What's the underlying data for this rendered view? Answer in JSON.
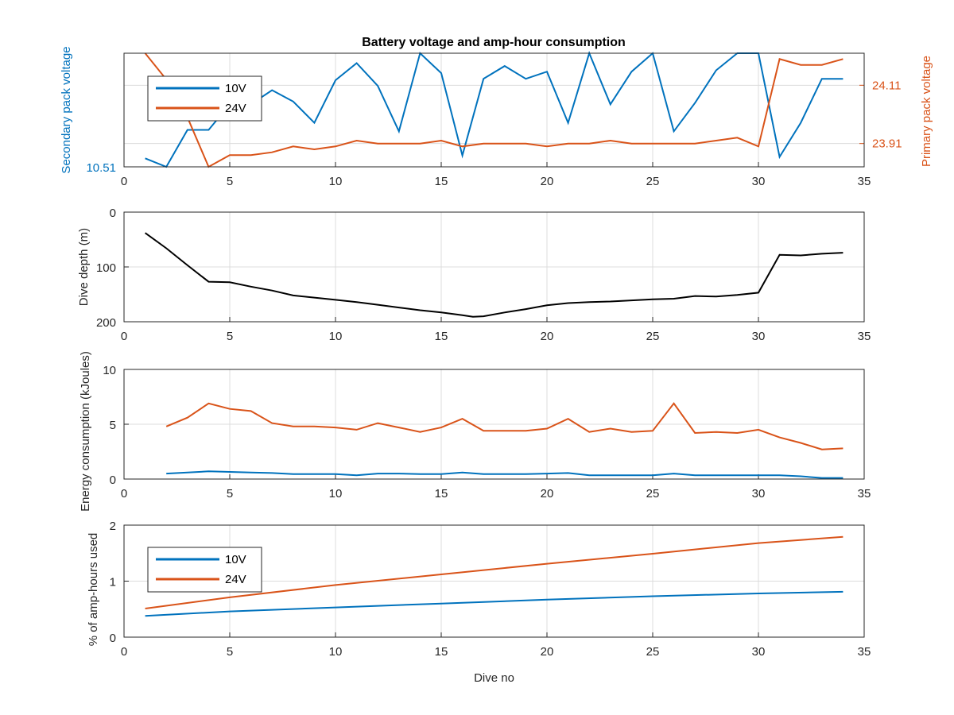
{
  "title": "Battery voltage and amp-hour consumption",
  "chart_data": [
    {
      "type": "line",
      "title": "Battery voltage and amp-hour consumption",
      "xlabel": "",
      "ylabel_left": "Secondary pack voltage",
      "ylabel_right": "Primary pack voltage",
      "xlim": [
        0,
        35
      ],
      "xticks": [
        "0",
        "5",
        "10",
        "15",
        "20",
        "25",
        "30",
        "35"
      ],
      "ylim_left": [
        10.51,
        10.59
      ],
      "yticks_left": [
        "10.51"
      ],
      "ylim_right": [
        23.83,
        24.22
      ],
      "yticks_right": [
        "23.91",
        "24.11"
      ],
      "grid": true,
      "legend_position": "upper-left",
      "series": [
        {
          "name": "10V",
          "axis": "left",
          "color": "#0072BD",
          "x": [
            1,
            2,
            3,
            4,
            5,
            6,
            7,
            8,
            9,
            10,
            11,
            12,
            13,
            14,
            15,
            16,
            17,
            18,
            19,
            20,
            21,
            22,
            23,
            24,
            25,
            26,
            27,
            28,
            29,
            30,
            31,
            32,
            33,
            34
          ],
          "values": [
            10.516,
            10.51,
            10.536,
            10.536,
            10.554,
            10.554,
            10.564,
            10.556,
            10.541,
            10.571,
            10.583,
            10.567,
            10.535,
            10.59,
            10.576,
            10.518,
            10.572,
            10.581,
            10.572,
            10.577,
            10.541,
            10.59,
            10.554,
            10.577,
            10.59,
            10.535,
            10.555,
            10.578,
            10.59,
            10.59,
            10.517,
            10.541,
            10.572,
            10.572
          ]
        },
        {
          "name": "24V",
          "axis": "right",
          "color": "#D95319",
          "x": [
            1,
            2,
            3,
            4,
            5,
            6,
            7,
            8,
            9,
            10,
            11,
            12,
            13,
            14,
            15,
            16,
            17,
            18,
            19,
            20,
            21,
            22,
            23,
            24,
            25,
            26,
            27,
            28,
            29,
            30,
            31,
            32,
            33,
            34
          ],
          "values": [
            24.22,
            24.13,
            24.0,
            23.83,
            23.87,
            23.87,
            23.88,
            23.9,
            23.89,
            23.9,
            23.92,
            23.91,
            23.91,
            23.91,
            23.92,
            23.9,
            23.91,
            23.91,
            23.91,
            23.9,
            23.91,
            23.91,
            23.92,
            23.91,
            23.91,
            23.91,
            23.91,
            23.92,
            23.93,
            23.9,
            24.2,
            24.18,
            24.18,
            24.2
          ]
        }
      ]
    },
    {
      "type": "line",
      "xlabel": "",
      "ylabel": "Dive depth (m)",
      "xlim": [
        0,
        35
      ],
      "xticks": [
        "0",
        "5",
        "10",
        "15",
        "20",
        "25",
        "30",
        "35"
      ],
      "ylim": [
        0,
        200
      ],
      "y_reversed": true,
      "yticks": [
        "0",
        "100",
        "200"
      ],
      "grid": true,
      "series": [
        {
          "color": "#000000",
          "x": [
            1,
            2,
            3,
            4,
            5,
            6,
            7,
            8,
            9,
            10,
            11,
            12,
            13,
            14,
            15,
            16,
            16.5,
            17,
            18,
            19,
            20,
            21,
            22,
            23,
            24,
            25,
            26,
            27,
            28,
            29,
            30,
            31,
            32,
            33,
            34
          ],
          "values": [
            38,
            66,
            97,
            127,
            128,
            136,
            143,
            152,
            156,
            160,
            164,
            169,
            174,
            179,
            183,
            188,
            191,
            190,
            183,
            177,
            170,
            166,
            164,
            163,
            161,
            159,
            158,
            153,
            154,
            151,
            147,
            78,
            79,
            76,
            74
          ]
        }
      ]
    },
    {
      "type": "line",
      "xlabel": "",
      "ylabel": "Energy consumption (kJoules)",
      "xlim": [
        0,
        35
      ],
      "xticks": [
        "0",
        "5",
        "10",
        "15",
        "20",
        "25",
        "30",
        "35"
      ],
      "ylim": [
        0,
        10
      ],
      "yticks": [
        "0",
        "5",
        "10"
      ],
      "grid": true,
      "series": [
        {
          "color": "#0072BD",
          "x": [
            2,
            3,
            4,
            5,
            6,
            7,
            8,
            9,
            10,
            11,
            12,
            13,
            14,
            15,
            16,
            17,
            18,
            19,
            20,
            21,
            22,
            23,
            24,
            25,
            26,
            27,
            28,
            29,
            30,
            31,
            32,
            33,
            34
          ],
          "values": [
            0.5,
            0.6,
            0.7,
            0.65,
            0.6,
            0.55,
            0.45,
            0.45,
            0.45,
            0.35,
            0.5,
            0.5,
            0.45,
            0.45,
            0.6,
            0.45,
            0.45,
            0.45,
            0.5,
            0.55,
            0.35,
            0.35,
            0.35,
            0.35,
            0.5,
            0.35,
            0.35,
            0.35,
            0.35,
            0.35,
            0.25,
            0.1,
            0.1
          ]
        },
        {
          "color": "#D95319",
          "x": [
            2,
            3,
            4,
            5,
            6,
            7,
            8,
            9,
            10,
            11,
            12,
            13,
            14,
            15,
            16,
            17,
            18,
            19,
            20,
            21,
            22,
            23,
            24,
            25,
            26,
            27,
            28,
            29,
            30,
            31,
            32,
            33,
            34
          ],
          "values": [
            4.8,
            5.6,
            6.9,
            6.4,
            6.2,
            5.1,
            4.8,
            4.8,
            4.7,
            4.5,
            5.1,
            4.7,
            4.3,
            4.7,
            5.5,
            4.4,
            4.4,
            4.4,
            4.6,
            5.5,
            4.3,
            4.6,
            4.3,
            4.4,
            6.9,
            4.2,
            4.3,
            4.2,
            4.5,
            3.8,
            3.3,
            2.7,
            2.8
          ]
        }
      ]
    },
    {
      "type": "line",
      "xlabel": "Dive no",
      "ylabel": "% of amp-hours used",
      "xlim": [
        0,
        35
      ],
      "xticks": [
        "0",
        "5",
        "10",
        "15",
        "20",
        "25",
        "30",
        "35"
      ],
      "ylim": [
        0,
        2
      ],
      "yticks": [
        "0",
        "1",
        "2"
      ],
      "grid": true,
      "legend_position": "upper-left",
      "series": [
        {
          "name": "10V",
          "color": "#0072BD",
          "x": [
            1,
            5,
            10,
            15,
            20,
            25,
            30,
            34
          ],
          "values": [
            0.38,
            0.46,
            0.53,
            0.6,
            0.67,
            0.73,
            0.78,
            0.81
          ]
        },
        {
          "name": "24V",
          "color": "#D95319",
          "x": [
            1,
            5,
            10,
            15,
            20,
            25,
            30,
            34
          ],
          "values": [
            0.51,
            0.71,
            0.93,
            1.12,
            1.31,
            1.49,
            1.68,
            1.79
          ]
        }
      ]
    }
  ]
}
